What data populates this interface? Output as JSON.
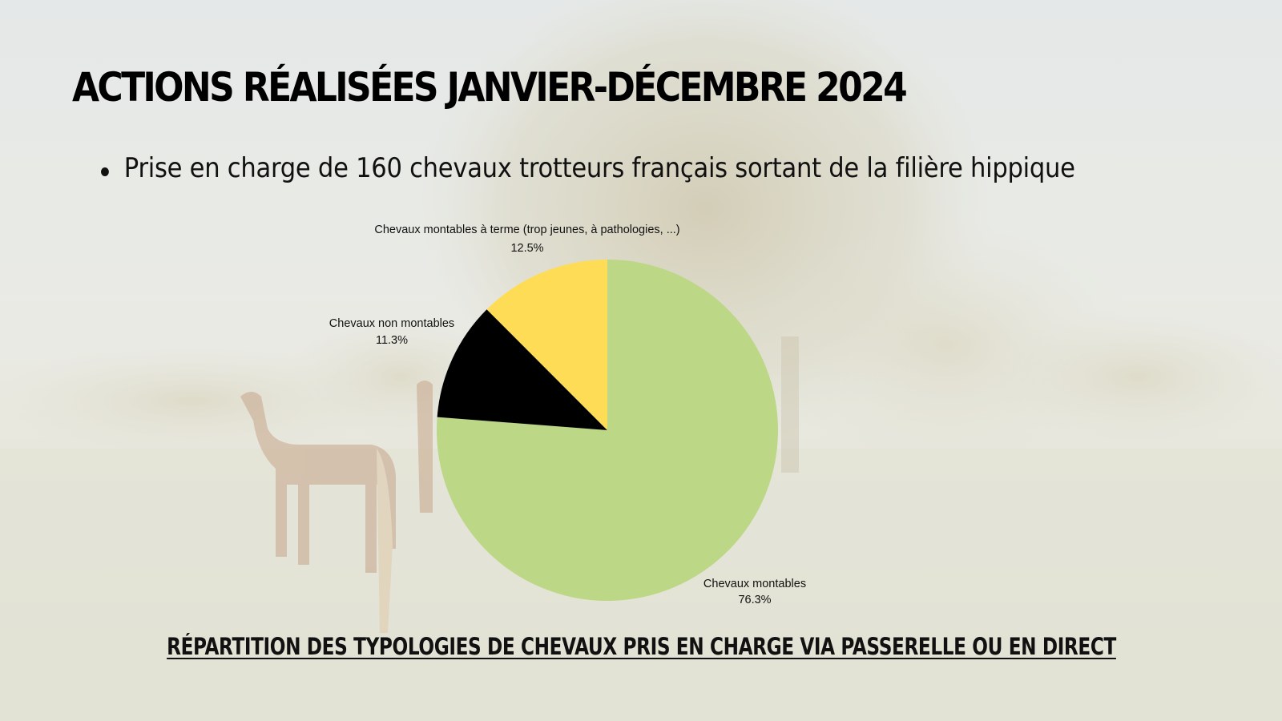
{
  "slide": {
    "title": "ACTIONS RÉALISÉES JANVIER-DÉCEMBRE 2024",
    "bullets": [
      "Prise en charge de 160 chevaux trotteurs français sortant de la filière hippique"
    ],
    "caption": "RÉPARTITION DES TYPOLOGIES DE CHEVAUX PRIS EN CHARGE VIA PASSERELLE OU EN DIRECT"
  },
  "chart_data": {
    "type": "pie",
    "slices": [
      {
        "label": "Chevaux montables",
        "value_label": "76.3%",
        "value": 76.3,
        "color": "#bcd786"
      },
      {
        "label": "Chevaux non montables",
        "value_label": "11.3%",
        "value": 11.3,
        "color": "#000000"
      },
      {
        "label": "Chevaux montables à terme (trop jeunes, à pathologies, ...)",
        "value_label": "12.5%",
        "value": 12.5,
        "color": "#ffdc55"
      }
    ],
    "start": "12 o'clock",
    "direction": "clockwise",
    "legend": "none"
  }
}
